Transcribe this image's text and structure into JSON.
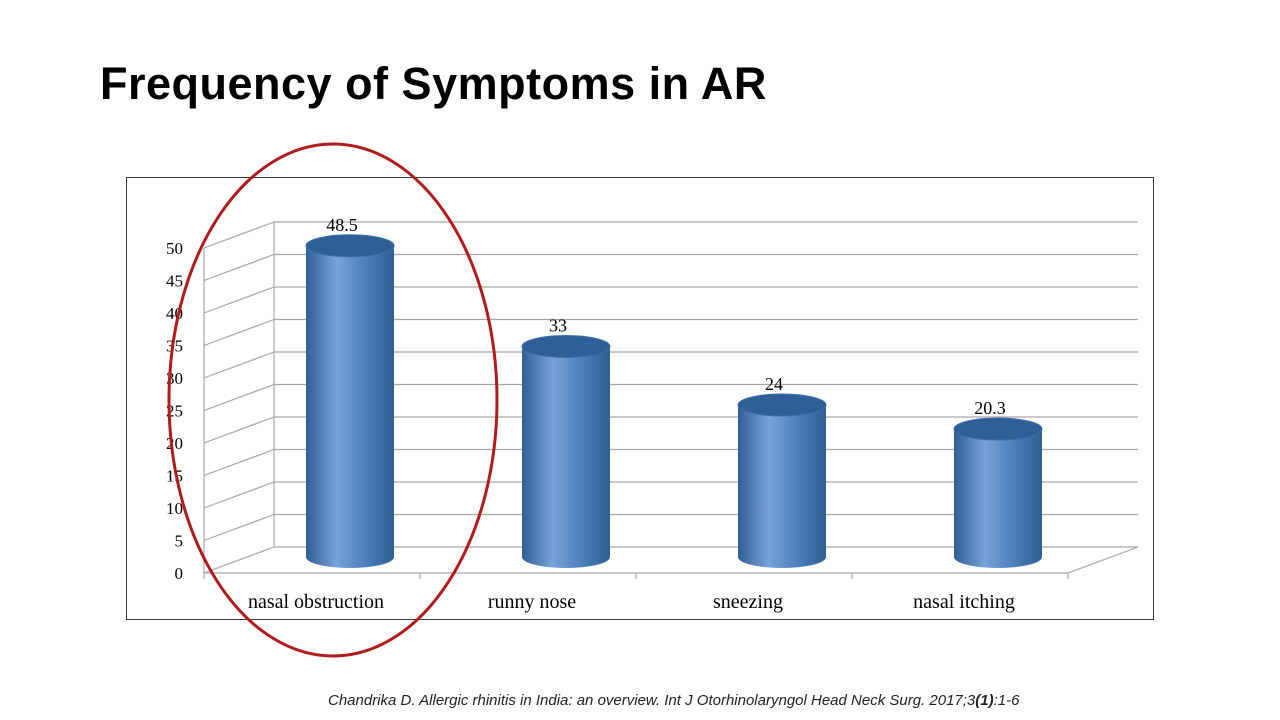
{
  "slide": {
    "title": "Frequency of Symptoms in AR",
    "citation": {
      "authors": "Chandrika D. Allergic rhinitis in India: an overview. Int J Otorhinolaryngol Head Neck Surg. 2017;3",
      "issue": "(1)",
      "pages": ":1-6"
    }
  },
  "colors": {
    "bar": "#4f81bd",
    "bar_dark": "#2e5f96",
    "bar_light": "#79a3d8",
    "grid": "#a6a6a6",
    "highlight_circle": "#b01c1c"
  },
  "chart_data": {
    "type": "bar",
    "style": "3d-cylinder",
    "categories": [
      "nasal obstruction",
      "runny nose",
      "sneezing",
      "nasal itching"
    ],
    "values": [
      48.5,
      33,
      24,
      20.3
    ],
    "data_labels": [
      "48.5",
      "33",
      "24",
      "20.3"
    ],
    "ylim": [
      0,
      50
    ],
    "yticks": [
      "0",
      "5",
      "10",
      "15",
      "20",
      "25",
      "30",
      "35",
      "40",
      "45",
      "50"
    ],
    "grid": true,
    "legend": "none",
    "annotation": "red circle around nasal obstruction"
  }
}
